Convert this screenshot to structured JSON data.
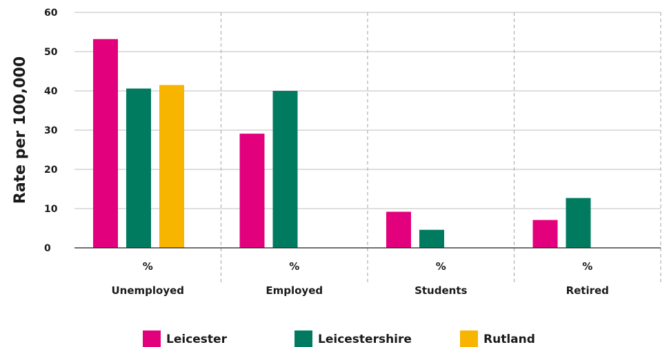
{
  "chart_data": {
    "type": "bar",
    "title": "",
    "xlabel": "",
    "ylabel": "Rate per 100,000",
    "ylim": [
      0,
      60
    ],
    "yticks": [
      0,
      10,
      20,
      30,
      40,
      50,
      60
    ],
    "grid": "horizontal gridlines; dashed vertical separators between categories",
    "legend_position": "bottom",
    "categories": [
      "Unemployed",
      "Employed",
      "Students",
      "Retired"
    ],
    "category_unit_labels": [
      "%",
      "%",
      "%",
      "%"
    ],
    "series": [
      {
        "name": "Leicester",
        "color": "#E3007D",
        "values": [
          53.2,
          29.1,
          9.2,
          7.1
        ]
      },
      {
        "name": "Leicestershire",
        "color": "#007B5F",
        "values": [
          40.6,
          40.0,
          4.6,
          12.7
        ]
      },
      {
        "name": "Rutland",
        "color": "#F7B500",
        "values": [
          41.5,
          null,
          null,
          null
        ]
      }
    ]
  }
}
